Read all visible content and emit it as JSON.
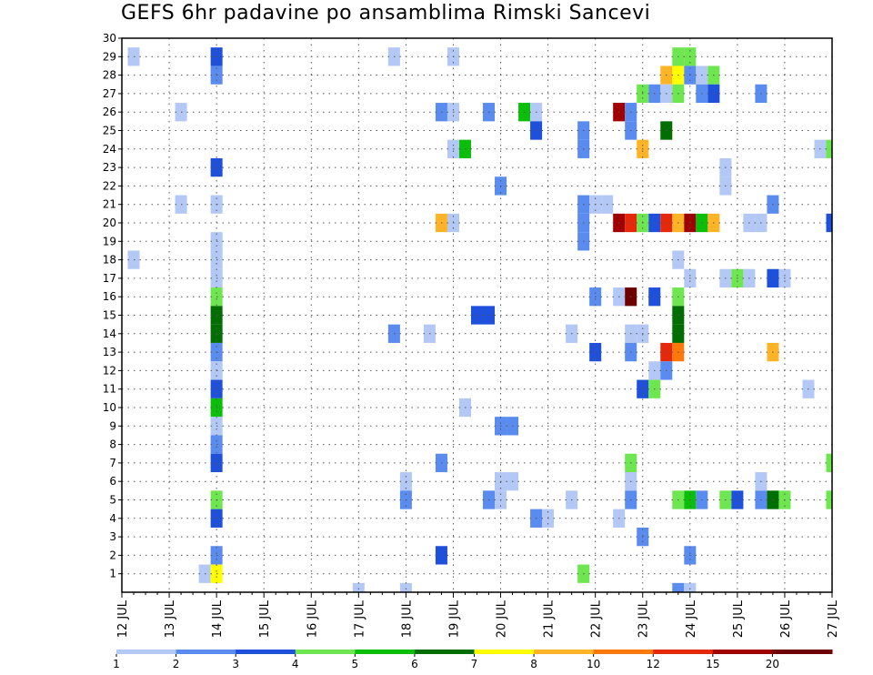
{
  "chart_data": {
    "type": "heatmap",
    "title": "GEFS 6hr padavine po ansamblima Rimski Sancevi",
    "xlabel": "",
    "ylabel": "",
    "x_start_day": 12,
    "x_end_day": 27,
    "x_step_hours": 6,
    "x_ticks": [
      "12 JUL",
      "13 JUL",
      "14 JUL",
      "15 JUL",
      "16 JUL",
      "17 JUL",
      "18 JUL",
      "19 JUL",
      "20 JUL",
      "21 JUL",
      "22 JUL",
      "23 JUL",
      "24 JUL",
      "25 JUL",
      "26 JUL",
      "27 JUL"
    ],
    "y_ticks": [
      1,
      2,
      3,
      4,
      5,
      6,
      7,
      8,
      9,
      10,
      11,
      12,
      13,
      14,
      15,
      16,
      17,
      18,
      19,
      20,
      21,
      22,
      23,
      24,
      25,
      26,
      27,
      28,
      29,
      30
    ],
    "ylim": [
      0,
      30
    ],
    "grid": true,
    "colorbar": {
      "labels": [
        "1",
        "2",
        "3",
        "4",
        "5",
        "6",
        "7",
        "8",
        "10",
        "12",
        "15",
        "20"
      ],
      "colors": [
        "#b4c8f5",
        "#5a8cf0",
        "#1e50dc",
        "#6ee650",
        "#0abe0a",
        "#006e00",
        "#ffff00",
        "#ffb428",
        "#ff780a",
        "#e6280a",
        "#a00000",
        "#6e0000"
      ]
    },
    "points": [
      {
        "t": 12.25,
        "m": 29,
        "c": 0
      },
      {
        "t": 12.25,
        "m": 18,
        "c": 0
      },
      {
        "t": 13.25,
        "m": 26,
        "c": 0
      },
      {
        "t": 13.25,
        "m": 21,
        "c": 0
      },
      {
        "t": 13.75,
        "m": 1,
        "c": 0
      },
      {
        "t": 14.0,
        "m": 29,
        "c": 2
      },
      {
        "t": 14.0,
        "m": 28,
        "c": 1
      },
      {
        "t": 14.0,
        "m": 23,
        "c": 2
      },
      {
        "t": 14.0,
        "m": 21,
        "c": 0
      },
      {
        "t": 14.0,
        "m": 19,
        "c": 0
      },
      {
        "t": 14.0,
        "m": 18,
        "c": 0
      },
      {
        "t": 14.0,
        "m": 17,
        "c": 0
      },
      {
        "t": 14.0,
        "m": 16,
        "c": 3
      },
      {
        "t": 14.0,
        "m": 15,
        "c": 5
      },
      {
        "t": 14.0,
        "m": 14,
        "c": 5
      },
      {
        "t": 14.0,
        "m": 13,
        "c": 1
      },
      {
        "t": 14.0,
        "m": 12,
        "c": 0
      },
      {
        "t": 14.0,
        "m": 11,
        "c": 2
      },
      {
        "t": 14.0,
        "m": 10,
        "c": 4
      },
      {
        "t": 14.0,
        "m": 9,
        "c": 0
      },
      {
        "t": 14.0,
        "m": 8,
        "c": 1
      },
      {
        "t": 14.0,
        "m": 7,
        "c": 2
      },
      {
        "t": 14.0,
        "m": 5,
        "c": 3
      },
      {
        "t": 14.0,
        "m": 4,
        "c": 2
      },
      {
        "t": 14.0,
        "m": 2,
        "c": 1
      },
      {
        "t": 14.0,
        "m": 1,
        "c": 6
      },
      {
        "t": 17.0,
        "m": 0,
        "c": 0
      },
      {
        "t": 17.75,
        "m": 29,
        "c": 0
      },
      {
        "t": 17.75,
        "m": 14,
        "c": 1
      },
      {
        "t": 18.0,
        "m": 6,
        "c": 0
      },
      {
        "t": 18.0,
        "m": 5,
        "c": 1
      },
      {
        "t": 18.0,
        "m": 0,
        "c": 0
      },
      {
        "t": 18.5,
        "m": 14,
        "c": 0
      },
      {
        "t": 18.75,
        "m": 26,
        "c": 1
      },
      {
        "t": 18.75,
        "m": 20,
        "c": 7
      },
      {
        "t": 18.75,
        "m": 7,
        "c": 1
      },
      {
        "t": 18.75,
        "m": 2,
        "c": 2
      },
      {
        "t": 19.0,
        "m": 29,
        "c": 0
      },
      {
        "t": 19.0,
        "m": 26,
        "c": 0
      },
      {
        "t": 19.0,
        "m": 24,
        "c": 0
      },
      {
        "t": 19.0,
        "m": 20,
        "c": 0
      },
      {
        "t": 19.25,
        "m": 24,
        "c": 4
      },
      {
        "t": 19.25,
        "m": 10,
        "c": 0
      },
      {
        "t": 19.5,
        "m": 15,
        "c": 2
      },
      {
        "t": 19.75,
        "m": 26,
        "c": 1
      },
      {
        "t": 19.75,
        "m": 15,
        "c": 2
      },
      {
        "t": 19.75,
        "m": 5,
        "c": 1
      },
      {
        "t": 20.0,
        "m": 22,
        "c": 1
      },
      {
        "t": 20.0,
        "m": 9,
        "c": 1
      },
      {
        "t": 20.0,
        "m": 6,
        "c": 0
      },
      {
        "t": 20.0,
        "m": 5,
        "c": 0
      },
      {
        "t": 20.25,
        "m": 9,
        "c": 1
      },
      {
        "t": 20.25,
        "m": 6,
        "c": 0
      },
      {
        "t": 20.5,
        "m": 26,
        "c": 4
      },
      {
        "t": 20.75,
        "m": 26,
        "c": 0
      },
      {
        "t": 20.75,
        "m": 25,
        "c": 2
      },
      {
        "t": 20.75,
        "m": 4,
        "c": 1
      },
      {
        "t": 21.0,
        "m": 4,
        "c": 0
      },
      {
        "t": 21.5,
        "m": 14,
        "c": 0
      },
      {
        "t": 21.5,
        "m": 5,
        "c": 0
      },
      {
        "t": 21.75,
        "m": 25,
        "c": 1
      },
      {
        "t": 21.75,
        "m": 24,
        "c": 1
      },
      {
        "t": 21.75,
        "m": 21,
        "c": 1
      },
      {
        "t": 21.75,
        "m": 20,
        "c": 1
      },
      {
        "t": 21.75,
        "m": 19,
        "c": 1
      },
      {
        "t": 21.75,
        "m": 1,
        "c": 3
      },
      {
        "t": 22.0,
        "m": 21,
        "c": 0
      },
      {
        "t": 22.0,
        "m": 16,
        "c": 1
      },
      {
        "t": 22.0,
        "m": 13,
        "c": 2
      },
      {
        "t": 22.25,
        "m": 21,
        "c": 0
      },
      {
        "t": 22.5,
        "m": 26,
        "c": 10
      },
      {
        "t": 22.5,
        "m": 20,
        "c": 10
      },
      {
        "t": 22.5,
        "m": 16,
        "c": 0
      },
      {
        "t": 22.5,
        "m": 4,
        "c": 0
      },
      {
        "t": 22.75,
        "m": 26,
        "c": 1
      },
      {
        "t": 22.75,
        "m": 25,
        "c": 1
      },
      {
        "t": 22.75,
        "m": 20,
        "c": 9
      },
      {
        "t": 22.75,
        "m": 16,
        "c": 11
      },
      {
        "t": 22.75,
        "m": 14,
        "c": 0
      },
      {
        "t": 22.75,
        "m": 13,
        "c": 1
      },
      {
        "t": 22.75,
        "m": 7,
        "c": 3
      },
      {
        "t": 22.75,
        "m": 6,
        "c": 0
      },
      {
        "t": 22.75,
        "m": 5,
        "c": 1
      },
      {
        "t": 23.0,
        "m": 27,
        "c": 3
      },
      {
        "t": 23.0,
        "m": 24,
        "c": 7
      },
      {
        "t": 23.0,
        "m": 20,
        "c": 3
      },
      {
        "t": 23.0,
        "m": 14,
        "c": 0
      },
      {
        "t": 23.0,
        "m": 11,
        "c": 2
      },
      {
        "t": 23.0,
        "m": 3,
        "c": 1
      },
      {
        "t": 23.25,
        "m": 27,
        "c": 1
      },
      {
        "t": 23.25,
        "m": 20,
        "c": 2
      },
      {
        "t": 23.25,
        "m": 16,
        "c": 2
      },
      {
        "t": 23.25,
        "m": 12,
        "c": 0
      },
      {
        "t": 23.25,
        "m": 11,
        "c": 3
      },
      {
        "t": 23.5,
        "m": 28,
        "c": 7
      },
      {
        "t": 23.5,
        "m": 27,
        "c": 0
      },
      {
        "t": 23.5,
        "m": 25,
        "c": 5
      },
      {
        "t": 23.5,
        "m": 20,
        "c": 9
      },
      {
        "t": 23.5,
        "m": 13,
        "c": 9
      },
      {
        "t": 23.5,
        "m": 12,
        "c": 1
      },
      {
        "t": 23.75,
        "m": 29,
        "c": 3
      },
      {
        "t": 23.75,
        "m": 28,
        "c": 6
      },
      {
        "t": 23.75,
        "m": 27,
        "c": 3
      },
      {
        "t": 23.75,
        "m": 20,
        "c": 7
      },
      {
        "t": 23.75,
        "m": 18,
        "c": 0
      },
      {
        "t": 23.75,
        "m": 16,
        "c": 3
      },
      {
        "t": 23.75,
        "m": 15,
        "c": 5
      },
      {
        "t": 23.75,
        "m": 14,
        "c": 5
      },
      {
        "t": 23.75,
        "m": 13,
        "c": 8
      },
      {
        "t": 23.75,
        "m": 5,
        "c": 3
      },
      {
        "t": 23.75,
        "m": 0,
        "c": 1
      },
      {
        "t": 24.0,
        "m": 29,
        "c": 3
      },
      {
        "t": 24.0,
        "m": 28,
        "c": 1
      },
      {
        "t": 24.0,
        "m": 20,
        "c": 10
      },
      {
        "t": 24.0,
        "m": 17,
        "c": 0
      },
      {
        "t": 24.0,
        "m": 5,
        "c": 4
      },
      {
        "t": 24.0,
        "m": 2,
        "c": 1
      },
      {
        "t": 24.0,
        "m": 0,
        "c": 0
      },
      {
        "t": 24.25,
        "m": 28,
        "c": 0
      },
      {
        "t": 24.25,
        "m": 27,
        "c": 1
      },
      {
        "t": 24.25,
        "m": 20,
        "c": 4
      },
      {
        "t": 24.25,
        "m": 5,
        "c": 1
      },
      {
        "t": 24.5,
        "m": 28,
        "c": 3
      },
      {
        "t": 24.5,
        "m": 27,
        "c": 2
      },
      {
        "t": 24.5,
        "m": 20,
        "c": 7
      },
      {
        "t": 24.75,
        "m": 23,
        "c": 0
      },
      {
        "t": 24.75,
        "m": 22,
        "c": 0
      },
      {
        "t": 24.75,
        "m": 17,
        "c": 0
      },
      {
        "t": 24.75,
        "m": 5,
        "c": 3
      },
      {
        "t": 25.0,
        "m": 17,
        "c": 3
      },
      {
        "t": 25.0,
        "m": 5,
        "c": 2
      },
      {
        "t": 25.25,
        "m": 20,
        "c": 0
      },
      {
        "t": 25.25,
        "m": 17,
        "c": 0
      },
      {
        "t": 25.5,
        "m": 27,
        "c": 1
      },
      {
        "t": 25.5,
        "m": 20,
        "c": 0
      },
      {
        "t": 25.5,
        "m": 6,
        "c": 0
      },
      {
        "t": 25.5,
        "m": 5,
        "c": 1
      },
      {
        "t": 25.75,
        "m": 21,
        "c": 1
      },
      {
        "t": 25.75,
        "m": 17,
        "c": 2
      },
      {
        "t": 25.75,
        "m": 13,
        "c": 7
      },
      {
        "t": 25.75,
        "m": 5,
        "c": 5
      },
      {
        "t": 26.0,
        "m": 17,
        "c": 0
      },
      {
        "t": 26.0,
        "m": 5,
        "c": 3
      },
      {
        "t": 26.5,
        "m": 11,
        "c": 0
      },
      {
        "t": 26.75,
        "m": 24,
        "c": 0
      },
      {
        "t": 27.0,
        "m": 24,
        "c": 3
      },
      {
        "t": 27.0,
        "m": 20,
        "c": 2
      },
      {
        "t": 27.0,
        "m": 7,
        "c": 3
      },
      {
        "t": 27.0,
        "m": 5,
        "c": 3
      }
    ]
  }
}
